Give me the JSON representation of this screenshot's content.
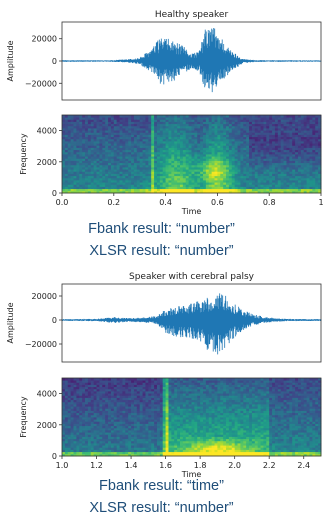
{
  "chart_data": [
    {
      "type": "line",
      "title": "Healthy speaker",
      "xlabel": "",
      "ylabel": "Amplitude",
      "ylim": [
        -35000,
        35000
      ],
      "yticks": [
        20000,
        0,
        -20000
      ],
      "ytick_labels": [
        "20000",
        "0",
        "−20000"
      ],
      "xlim": [
        0.0,
        1.0
      ],
      "series_color": "#1f77b4",
      "envelope": {
        "x": [
          0.0,
          0.1,
          0.2,
          0.27,
          0.3,
          0.35,
          0.38,
          0.41,
          0.44,
          0.47,
          0.5,
          0.53,
          0.55,
          0.58,
          0.6,
          0.62,
          0.65,
          0.7,
          0.75,
          1.0
        ],
        "pos": [
          800,
          700,
          800,
          2000,
          3000,
          12000,
          22000,
          20000,
          17000,
          13000,
          7000,
          9000,
          28000,
          33000,
          27000,
          20000,
          10000,
          2000,
          800,
          700
        ],
        "neg": [
          -800,
          -700,
          -800,
          -2000,
          -3000,
          -12000,
          -23000,
          -20000,
          -17000,
          -11000,
          -7000,
          -10000,
          -24000,
          -29000,
          -22000,
          -18000,
          -10000,
          -2000,
          -800,
          -700
        ]
      }
    },
    {
      "type": "heatmap",
      "title": "",
      "xlabel": "Time",
      "ylabel": "Frequency",
      "xlim": [
        0.0,
        1.0
      ],
      "ylim": [
        0,
        5000
      ],
      "xticks": [
        0.0,
        0.2,
        0.4,
        0.6,
        0.8,
        1.0
      ],
      "xtick_labels": [
        "0.0",
        "0.2",
        "0.4",
        "0.6",
        "0.8",
        "1"
      ],
      "yticks": [
        0,
        2000,
        4000
      ],
      "ytick_labels": [
        "0",
        "2000",
        "4000"
      ],
      "colormap": "viridis"
    },
    {
      "type": "line",
      "title": "Speaker with cerebral palsy",
      "xlabel": "",
      "ylabel": "Amplitude",
      "ylim": [
        -35000,
        30000
      ],
      "yticks": [
        20000,
        0,
        -20000
      ],
      "ytick_labels": [
        "20000",
        "0",
        "−20000"
      ],
      "xlim": [
        1.0,
        2.5
      ],
      "series_color": "#1f77b4",
      "envelope": {
        "x": [
          1.0,
          1.2,
          1.3,
          1.4,
          1.5,
          1.55,
          1.6,
          1.7,
          1.8,
          1.85,
          1.9,
          1.95,
          2.0,
          2.05,
          2.1,
          2.2,
          2.3,
          2.5
        ],
        "pos": [
          800,
          1000,
          2500,
          1500,
          2500,
          3500,
          9000,
          13000,
          16000,
          19000,
          23000,
          20000,
          14000,
          9000,
          5000,
          2000,
          1000,
          800
        ],
        "neg": [
          -800,
          -1000,
          -2500,
          -1500,
          -2500,
          -3500,
          -12000,
          -15000,
          -20000,
          -26000,
          -30000,
          -22000,
          -15000,
          -9000,
          -5000,
          -2000,
          -1000,
          -800
        ]
      }
    },
    {
      "type": "heatmap",
      "title": "",
      "xlabel": "Time",
      "ylabel": "Frequency",
      "xlim": [
        1.0,
        2.5
      ],
      "ylim": [
        0,
        5000
      ],
      "xticks": [
        1.0,
        1.2,
        1.4,
        1.6,
        1.8,
        2.0,
        2.2,
        2.4
      ],
      "xtick_labels": [
        "1.0",
        "1.2",
        "1.4",
        "1.6",
        "1.8",
        "2.0",
        "2.2",
        "2.4"
      ],
      "yticks": [
        0,
        2000,
        4000
      ],
      "ytick_labels": [
        "0",
        "2000",
        "4000"
      ],
      "colormap": "viridis"
    }
  ],
  "results": {
    "healthy": {
      "fbank": "Fbank result: “number”",
      "xlsr": "XLSR result: “number”"
    },
    "cp": {
      "fbank": "Fbank result: “time”",
      "xlsr": "XLSR result: “number”"
    }
  }
}
